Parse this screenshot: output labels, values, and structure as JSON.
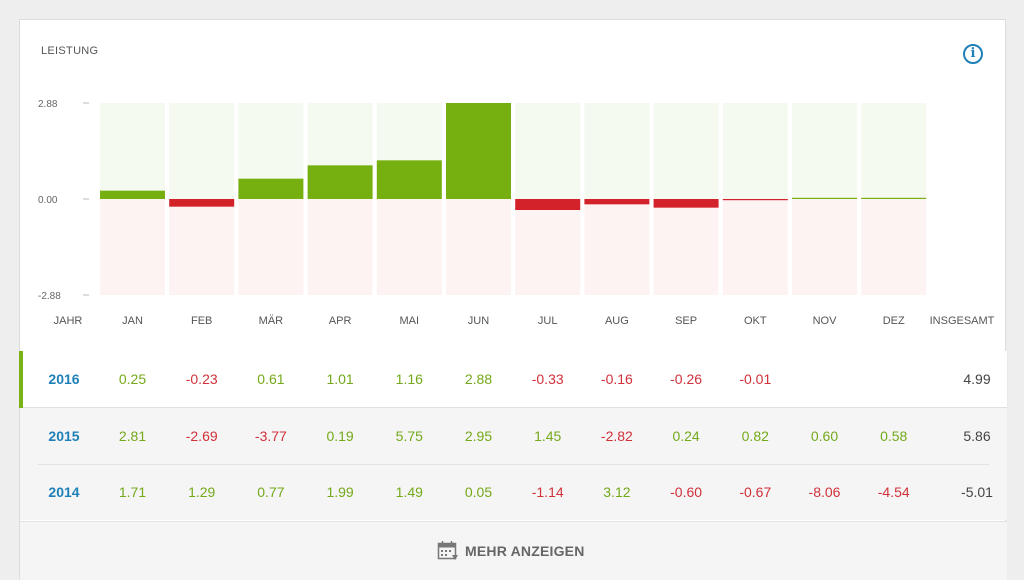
{
  "widget": {
    "title": "LEISTUNG"
  },
  "chart_data": {
    "type": "bar",
    "categories": [
      "JAN",
      "FEB",
      "MÄR",
      "APR",
      "MAI",
      "JUN",
      "JUL",
      "AUG",
      "SEP",
      "OKT",
      "NOV",
      "DEZ"
    ],
    "values": [
      0.25,
      -0.23,
      0.61,
      1.01,
      1.16,
      2.88,
      -0.33,
      -0.16,
      -0.26,
      -0.01,
      0.0,
      0.0
    ],
    "ylim": [
      -2.88,
      2.88
    ],
    "yticks": [
      "2.88",
      "0.00",
      "-2.88"
    ],
    "colors": {
      "positive": "#76b010",
      "negative": "#d4222b",
      "pos_bg": "#f5faf0",
      "neg_bg": "#fdf3f3"
    }
  },
  "table": {
    "header": {
      "year": "JAHR",
      "total": "INSGESAMT"
    },
    "rows": [
      {
        "year": "2016",
        "values": [
          "0.25",
          "-0.23",
          "0.61",
          "1.01",
          "1.16",
          "2.88",
          "-0.33",
          "-0.16",
          "-0.26",
          "-0.01",
          "",
          ""
        ],
        "total": "4.99"
      },
      {
        "year": "2015",
        "values": [
          "2.81",
          "-2.69",
          "-3.77",
          "0.19",
          "5.75",
          "2.95",
          "1.45",
          "-2.82",
          "0.24",
          "0.82",
          "0.60",
          "0.58"
        ],
        "total": "5.86"
      },
      {
        "year": "2014",
        "values": [
          "1.71",
          "1.29",
          "0.77",
          "1.99",
          "1.49",
          "0.05",
          "-1.14",
          "3.12",
          "-0.60",
          "-0.67",
          "-8.06",
          "-4.54"
        ],
        "total": "-5.01"
      }
    ]
  },
  "footer": {
    "more_label": "MEHR ANZEIGEN",
    "icon": "calendar-icon"
  },
  "info": {
    "icon": "info-icon",
    "label": "i"
  }
}
